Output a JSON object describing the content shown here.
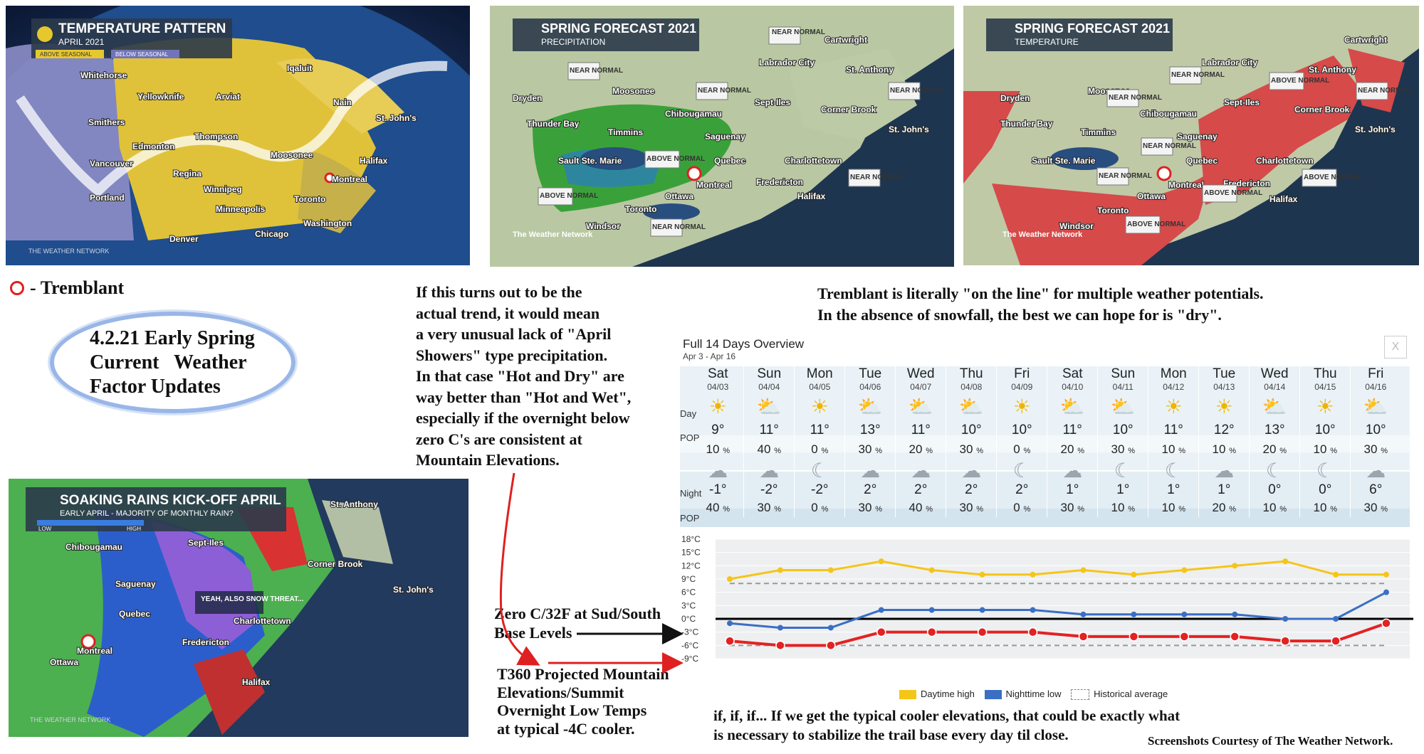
{
  "maps": {
    "temperature_pattern": {
      "title": "TEMPERATURE PATTERN",
      "subtitle": "APRIL 2021",
      "legend": [
        "ABOVE SEASONAL",
        "BELOW SEASONAL"
      ],
      "watermark": "THE WEATHER NETWORK",
      "cities": [
        "Whitehorse",
        "Yellowknife",
        "Arviat",
        "Iqaluit",
        "Nain",
        "St. John's",
        "Smithers",
        "Edmonton",
        "Thompson",
        "Moosonee",
        "Halifax",
        "Vancouver",
        "Regina",
        "Winnipeg",
        "Montreal",
        "Portland",
        "Minneapolis",
        "Toronto",
        "Washington",
        "Denver",
        "Chicago"
      ]
    },
    "spring_precip": {
      "title": "SPRING FORECAST 2021",
      "subtitle": "PRECIPITATION",
      "logo": "The Weather Network",
      "cities": [
        "Cartwright",
        "Labrador City",
        "St. Anthony",
        "Dryden",
        "Moosonee",
        "Chibougamau",
        "Sept-Iles",
        "Corner Brook",
        "Thunder Bay",
        "Timmins",
        "Saguenay",
        "St. John's",
        "Sault Ste. Marie",
        "Quebec",
        "Charlottetown",
        "Montreal",
        "Fredericton",
        "Ottawa",
        "Halifax",
        "Toronto",
        "Windsor"
      ],
      "badges": [
        "NEAR NORMAL",
        "NEAR NORMAL",
        "NEAR NORMAL",
        "NEAR NORMAL",
        "ABOVE NORMAL",
        "ABOVE NORMAL",
        "NEAR NORMAL",
        "NEAR NORMAL"
      ]
    },
    "spring_temp": {
      "title": "SPRING FORECAST 2021",
      "subtitle": "TEMPERATURE",
      "logo": "The Weather Network",
      "cities": [
        "Cartwright",
        "Labrador City",
        "St. Anthony",
        "Dryden",
        "Moosonee",
        "Sept-Iles",
        "Chibougamau",
        "Corner Brook",
        "Thunder Bay",
        "Timmins",
        "Saguenay",
        "St. John's",
        "Sault Ste. Marie",
        "Quebec",
        "Charlottetown",
        "Montreal",
        "Fredericton",
        "Ottawa",
        "Halifax",
        "Toronto",
        "Windsor"
      ],
      "badges": [
        "NEAR NORMAL",
        "NEAR NORMAL",
        "NEAR NORMAL",
        "ABOVE NORMAL",
        "NEAR NORMAL",
        "NEAR NORMAL",
        "ABOVE NORMAL",
        "ABOVE NORMAL",
        "ABOVE NORMAL"
      ]
    },
    "soaking_rains": {
      "title": "SOAKING RAINS KICK-OFF APRIL",
      "subtitle": "EARLY APRIL - MAJORITY OF MONTHLY RAIN?",
      "scale_low": "LOW",
      "scale_high": "HIGH",
      "callout": "YEAH, ALSO SNOW THREAT...",
      "watermark": "THE WEATHER NETWORK",
      "cities": [
        "St. Anthony",
        "Chibougamau",
        "Sept-Iles",
        "Corner Brook",
        "Saguenay",
        "St. John's",
        "Quebec",
        "Charlottetown",
        "Montreal",
        "Fredericton",
        "Ottawa",
        "Halifax"
      ]
    }
  },
  "marker_legend": "- Tremblant",
  "oval_title": "4.2.21 Early Spring Current Weather Factor Updates",
  "oval_lines": [
    "4.2.21 Early Spring",
    "Current   Weather",
    "Factor Updates"
  ],
  "note_center": [
    "If this turns out to be the",
    "actual trend, it would mean",
    "a very unusual lack of \"April",
    "Showers\" type precipitation.",
    "In that case \"Hot and Dry\" are",
    "way better than \"Hot and Wet\",",
    "especially if the overnight below",
    "zero C's are consistent at",
    "Mountain Elevations."
  ],
  "note_top_right": [
    "Tremblant is literally \"on the line\" for multiple weather potentials.",
    "In the absence of snowfall, the best we can hope for is \"dry\"."
  ],
  "annot_zero": [
    "Zero C/32F at Sud/South",
    "Base Levels"
  ],
  "annot_t360": [
    "T360 Projected Mountain",
    "Elevations/Summit",
    "Overnight Low Temps",
    "at typical -4C cooler."
  ],
  "note_bottom": [
    "if, if, if... If we get the typical cooler elevations, that could be exactly what",
    "is necessary to stabilize the trail base every day til close."
  ],
  "credit": "Screenshots Courtesy of The Weather Network.",
  "forecast": {
    "title": "Full 14 Days Overview",
    "range": "Apr 3 - Apr 16",
    "close": "X",
    "row_day": "Day",
    "row_pop": "POP",
    "row_night": "Night",
    "days": [
      {
        "name": "Sat",
        "date": "04/03",
        "hi": "9°",
        "pop_d": "10",
        "lo": "-1°",
        "pop_n": "40",
        "di": "☀",
        "ni": "☁"
      },
      {
        "name": "Sun",
        "date": "04/04",
        "hi": "11°",
        "pop_d": "40",
        "lo": "-2°",
        "pop_n": "30",
        "di": "⛅",
        "ni": "☁"
      },
      {
        "name": "Mon",
        "date": "04/05",
        "hi": "11°",
        "pop_d": "0",
        "lo": "-2°",
        "pop_n": "0",
        "di": "☀",
        "ni": "☾"
      },
      {
        "name": "Tue",
        "date": "04/06",
        "hi": "13°",
        "pop_d": "30",
        "lo": "2°",
        "pop_n": "30",
        "di": "⛅",
        "ni": "☁"
      },
      {
        "name": "Wed",
        "date": "04/07",
        "hi": "11°",
        "pop_d": "20",
        "lo": "2°",
        "pop_n": "40",
        "di": "⛅",
        "ni": "☁"
      },
      {
        "name": "Thu",
        "date": "04/08",
        "hi": "10°",
        "pop_d": "30",
        "lo": "2°",
        "pop_n": "30",
        "di": "⛅",
        "ni": "☁"
      },
      {
        "name": "Fri",
        "date": "04/09",
        "hi": "10°",
        "pop_d": "0",
        "lo": "2°",
        "pop_n": "0",
        "di": "☀",
        "ni": "☾"
      },
      {
        "name": "Sat",
        "date": "04/10",
        "hi": "11°",
        "pop_d": "20",
        "lo": "1°",
        "pop_n": "30",
        "di": "⛅",
        "ni": "☁"
      },
      {
        "name": "Sun",
        "date": "04/11",
        "hi": "10°",
        "pop_d": "30",
        "lo": "1°",
        "pop_n": "10",
        "di": "⛅",
        "ni": "☾"
      },
      {
        "name": "Mon",
        "date": "04/12",
        "hi": "11°",
        "pop_d": "10",
        "lo": "1°",
        "pop_n": "10",
        "di": "☀",
        "ni": "☾"
      },
      {
        "name": "Tue",
        "date": "04/13",
        "hi": "12°",
        "pop_d": "10",
        "lo": "1°",
        "pop_n": "20",
        "di": "☀",
        "ni": "☁"
      },
      {
        "name": "Wed",
        "date": "04/14",
        "hi": "13°",
        "pop_d": "20",
        "lo": "0°",
        "pop_n": "10",
        "di": "⛅",
        "ni": "☾"
      },
      {
        "name": "Thu",
        "date": "04/15",
        "hi": "10°",
        "pop_d": "10",
        "lo": "0°",
        "pop_n": "10",
        "di": "☀",
        "ni": "☾"
      },
      {
        "name": "Fri",
        "date": "04/16",
        "hi": "10°",
        "pop_d": "30",
        "lo": "6°",
        "pop_n": "30",
        "di": "⛅",
        "ni": "☁"
      }
    ],
    "pct": "%"
  },
  "chart_data": {
    "type": "line",
    "title": "",
    "xlabel": "",
    "ylabel": "",
    "x": [
      "Sat 04/03",
      "Sun 04/04",
      "Mon 04/05",
      "Tue 04/06",
      "Wed 04/07",
      "Thu 04/08",
      "Fri 04/09",
      "Sat 04/10",
      "Sun 04/11",
      "Mon 04/12",
      "Tue 04/13",
      "Wed 04/14",
      "Thu 04/15",
      "Fri 04/16"
    ],
    "y_ticks": [
      "18°C",
      "15°C",
      "12°C",
      "9°C",
      "6°C",
      "3°C",
      "0°C",
      "-3°C",
      "-6°C",
      "-9°C"
    ],
    "ylim": [
      -9,
      18
    ],
    "series": [
      {
        "name": "Daytime high",
        "color": "#f5c518",
        "values": [
          9,
          11,
          11,
          13,
          11,
          10,
          10,
          11,
          10,
          11,
          12,
          13,
          10,
          10
        ]
      },
      {
        "name": "Nighttime low",
        "color": "#3a6fc4",
        "values": [
          -1,
          -2,
          -2,
          2,
          2,
          2,
          2,
          1,
          1,
          1,
          1,
          0,
          0,
          6
        ]
      },
      {
        "name": "Historical average",
        "color": "#999999",
        "values": [
          8,
          8,
          8,
          8,
          8,
          8,
          8,
          8,
          8,
          8,
          8,
          8,
          8,
          8
        ]
      },
      {
        "name": "Historical average",
        "color": "#999999",
        "values": [
          -6,
          -6,
          -6,
          -6,
          -6,
          -6,
          -6,
          -6,
          -6,
          -6,
          -6,
          -6,
          -6,
          -6
        ]
      },
      {
        "name": "",
        "color": "#e32222",
        "values": [
          -5,
          -6,
          -6,
          -3,
          -3,
          -3,
          -3,
          -4,
          -4,
          -4,
          -4,
          -5,
          -5,
          -1
        ]
      }
    ],
    "legend": [
      "Daytime high",
      "Nighttime low",
      "Historical average"
    ],
    "zero_line": 0
  }
}
